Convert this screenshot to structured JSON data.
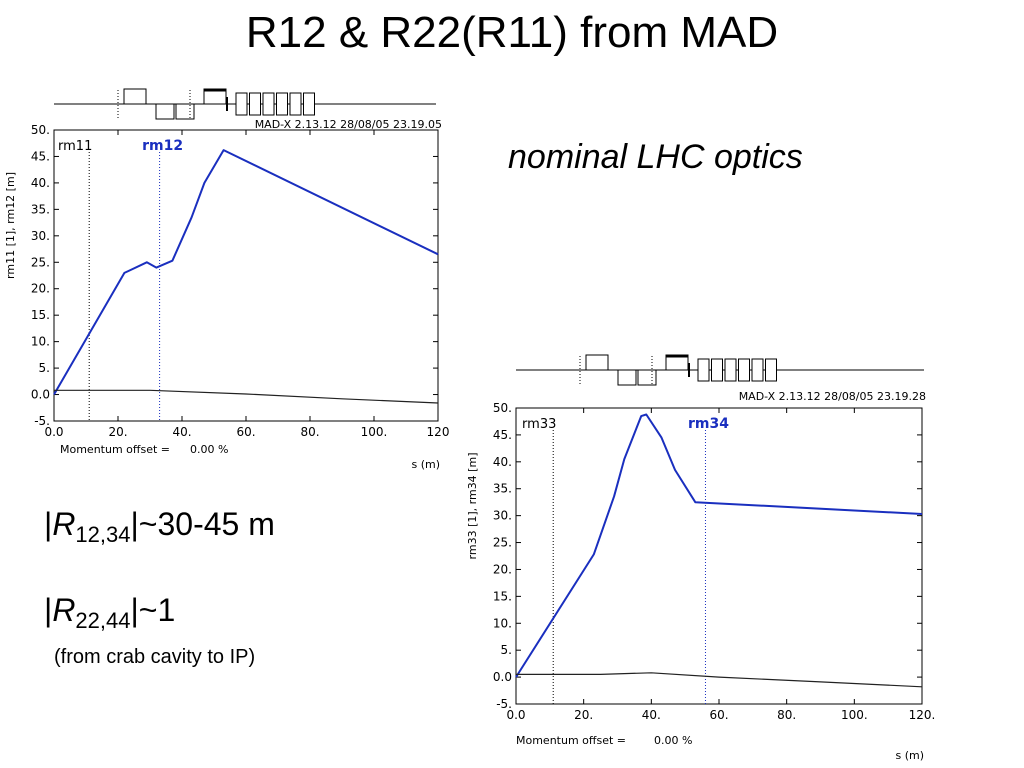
{
  "slide": {
    "title": "R12 & R22(R11) from MAD",
    "subtitle": "nominal LHC optics",
    "formula1": {
      "open": "|",
      "var": "R",
      "sub": "12,34",
      "close": "|~30-45 m"
    },
    "formula2": {
      "open": "|",
      "var": "R",
      "sub": "22,44",
      "close": "|~1"
    },
    "note": "(from crab cavity to IP)"
  },
  "colors": {
    "blue_series": "#1a2fbf",
    "black_series": "#222222",
    "frame": "#000000"
  },
  "chart_data": [
    {
      "type": "line",
      "header": "MAD-X 2.13.12   28/08/05 23.19.05",
      "ylabel": "rm11 [1], rm12 [m]",
      "xlabel": "s (m)",
      "footer_label": "Momentum offset =",
      "footer_value": "0.00  %",
      "xlim": [
        0,
        120
      ],
      "ylim": [
        -5,
        50
      ],
      "xticks": [
        "0.0",
        "20.",
        "40.",
        "60.",
        "80.",
        "100.",
        "120"
      ],
      "yticks": [
        "-5.",
        "0.0",
        "5.",
        "10.",
        "15.",
        "20.",
        "25.",
        "30.",
        "35.",
        "40.",
        "45.",
        "50."
      ],
      "markers": [
        {
          "label": "rm11",
          "x": 11
        },
        {
          "label": "rm12",
          "x": 33
        }
      ],
      "series": [
        {
          "name": "rm12",
          "color": "#1a2fbf",
          "x": [
            0,
            22,
            29,
            32,
            37,
            43,
            47,
            53,
            120
          ],
          "y": [
            0,
            23,
            25,
            24,
            25.3,
            33.5,
            40,
            46.2,
            26.5
          ]
        },
        {
          "name": "rm11",
          "color": "#222222",
          "x": [
            0,
            30,
            60,
            90,
            120
          ],
          "y": [
            0.8,
            0.8,
            0.1,
            -0.8,
            -1.6
          ]
        }
      ]
    },
    {
      "type": "line",
      "header": "MAD-X 2.13.12   28/08/05 23.19.28",
      "ylabel": "rm33 [1], rm34 [m]",
      "xlabel": "s (m)",
      "footer_label": "Momentum offset =",
      "footer_value": "0.00  %",
      "xlim": [
        0,
        120
      ],
      "ylim": [
        -5,
        50
      ],
      "xticks": [
        "0.0",
        "20.",
        "40.",
        "60.",
        "80.",
        "100.",
        "120."
      ],
      "yticks": [
        "-5.",
        "0.0",
        "5.",
        "10.",
        "15.",
        "20.",
        "25.",
        "30.",
        "35.",
        "40.",
        "45.",
        "50."
      ],
      "markers": [
        {
          "label": "rm33",
          "x": 11
        },
        {
          "label": "rm34",
          "x": 56
        }
      ],
      "series": [
        {
          "name": "rm34",
          "color": "#1a2fbf",
          "x": [
            0,
            23,
            29,
            32,
            37,
            38.5,
            43,
            47,
            53,
            120
          ],
          "y": [
            0,
            22.8,
            33.6,
            40.5,
            48.5,
            48.8,
            44.5,
            38.5,
            32.5,
            30.3
          ]
        },
        {
          "name": "rm33",
          "color": "#222222",
          "x": [
            0,
            25,
            40,
            60,
            90,
            120
          ],
          "y": [
            0.5,
            0.5,
            0.8,
            0.0,
            -0.9,
            -1.8
          ]
        }
      ]
    }
  ]
}
